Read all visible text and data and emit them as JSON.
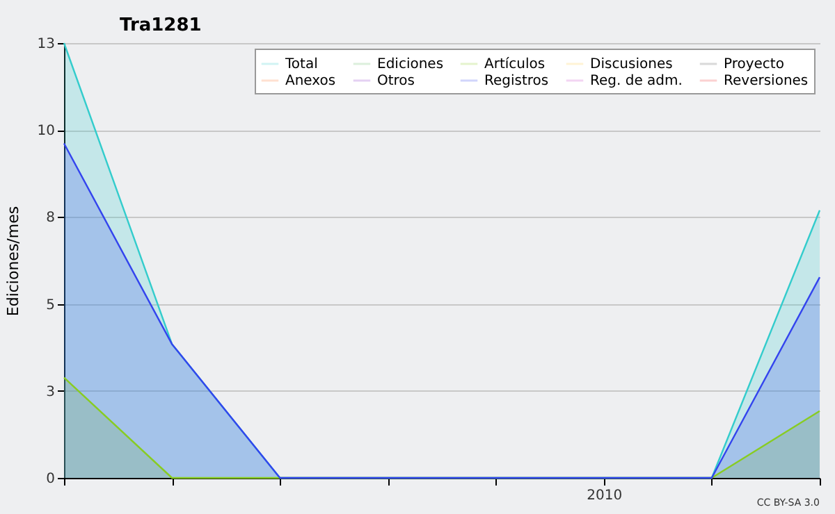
{
  "chart_data": {
    "type": "area",
    "title": "Tra1281",
    "ylabel": "Ediciones/mes",
    "categories": [
      null,
      null,
      null,
      null,
      null,
      "2010",
      null,
      null
    ],
    "series": [
      {
        "name": "Total",
        "type": "area",
        "color": "#33cccc",
        "values": [
          13,
          4,
          0,
          0,
          0,
          0,
          0,
          8
        ]
      },
      {
        "name": "Ediciones",
        "type": "line",
        "color": "#66bb66",
        "values": [
          null,
          null,
          null,
          null,
          null,
          null,
          null,
          null
        ]
      },
      {
        "name": "Artículos",
        "type": "area",
        "color": "#88cc22",
        "values": [
          3,
          0,
          0,
          0,
          0,
          0,
          0,
          2
        ]
      },
      {
        "name": "Discusiones",
        "type": "line",
        "color": "#ffcc44",
        "values": [
          null,
          null,
          null,
          null,
          null,
          null,
          null,
          null
        ]
      },
      {
        "name": "Proyecto",
        "type": "line",
        "color": "#555555",
        "values": [
          null,
          null,
          null,
          null,
          null,
          null,
          null,
          null
        ]
      },
      {
        "name": "Anexos",
        "type": "line",
        "color": "#ff7733",
        "values": [
          null,
          null,
          null,
          null,
          null,
          null,
          null,
          null
        ]
      },
      {
        "name": "Otros",
        "type": "line",
        "color": "#8833cc",
        "values": [
          null,
          null,
          null,
          null,
          null,
          null,
          null,
          null
        ]
      },
      {
        "name": "Registros",
        "type": "area",
        "color": "#3344ee",
        "values": [
          10,
          4,
          0,
          0,
          0,
          0,
          0,
          6
        ]
      },
      {
        "name": "Reg. de adm.",
        "type": "line",
        "color": "#cc44cc",
        "values": [
          null,
          null,
          null,
          null,
          null,
          null,
          null,
          null
        ]
      },
      {
        "name": "Reversiones",
        "type": "line",
        "color": "#ee3333",
        "values": [
          null,
          null,
          null,
          null,
          null,
          null,
          null,
          null
        ]
      }
    ],
    "ylim": [
      0,
      13
    ],
    "yticks": [
      0,
      {
        "value": 2.6,
        "label": "3"
      },
      {
        "value": 5.2,
        "label": "5"
      },
      {
        "value": 7.8,
        "label": "8"
      },
      {
        "value": 10.4,
        "label": "10"
      },
      13
    ],
    "grid": "y",
    "legend": "top right",
    "annotations": [
      "CC BY-SA 3.0"
    ]
  }
}
